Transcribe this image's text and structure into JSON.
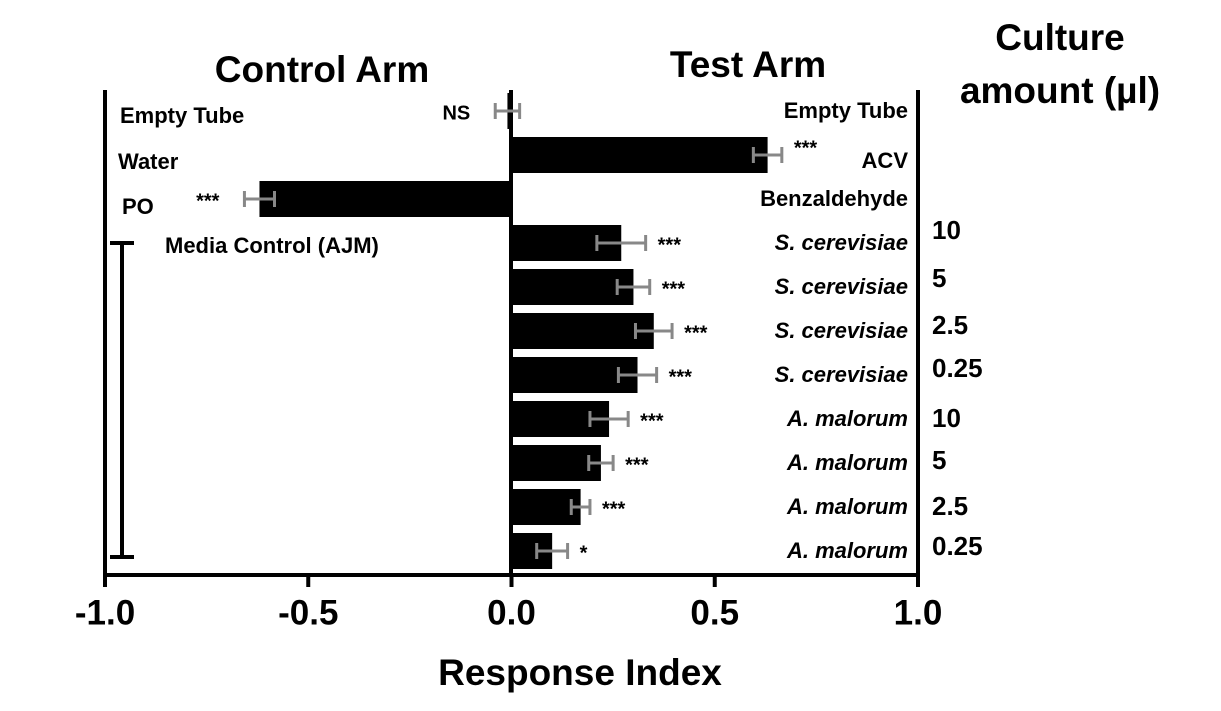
{
  "chart_data": {
    "type": "bar",
    "orientation": "horizontal",
    "control_title": "Control Arm",
    "test_title": "Test Arm",
    "amount_title": [
      "Culture",
      "amount (µl)"
    ],
    "xlabel": "Response Index",
    "control_labels": [
      "Empty Tube",
      "Water",
      "PO",
      "Media Control (AJM)",
      null,
      null,
      null,
      null,
      null,
      null,
      null
    ],
    "categories": [
      "Empty Tube",
      "ACV",
      "Benzaldehyde",
      "S. cerevisiae",
      "S. cerevisiae",
      "S. cerevisiae",
      "S. cerevisiae",
      "A. malorum",
      "A. malorum",
      "A. malorum",
      "A. malorum"
    ],
    "amounts": [
      null,
      null,
      null,
      "10",
      "5",
      "2.5",
      "0.25",
      "10",
      "5",
      "2.5",
      "0.25"
    ],
    "values": [
      -0.01,
      0.63,
      -0.62,
      0.27,
      0.3,
      0.35,
      0.31,
      0.24,
      0.22,
      0.17,
      0.1
    ],
    "errors": [
      0.03,
      0.035,
      0.037,
      0.06,
      0.04,
      0.045,
      0.047,
      0.047,
      0.03,
      0.023,
      0.038
    ],
    "significance": [
      "NS",
      "***",
      "***",
      "***",
      "***",
      "***",
      "***",
      "***",
      "***",
      "***",
      "*"
    ],
    "color": "#000000",
    "error_color": "#888888",
    "xlim": [
      -1,
      1
    ],
    "xticks": [
      {
        "value": -1,
        "label": "-1.0"
      },
      -0.5,
      {
        "value": 0,
        "label": "0.0"
      },
      0.5,
      {
        "value": 1,
        "label": "1.0"
      }
    ]
  }
}
